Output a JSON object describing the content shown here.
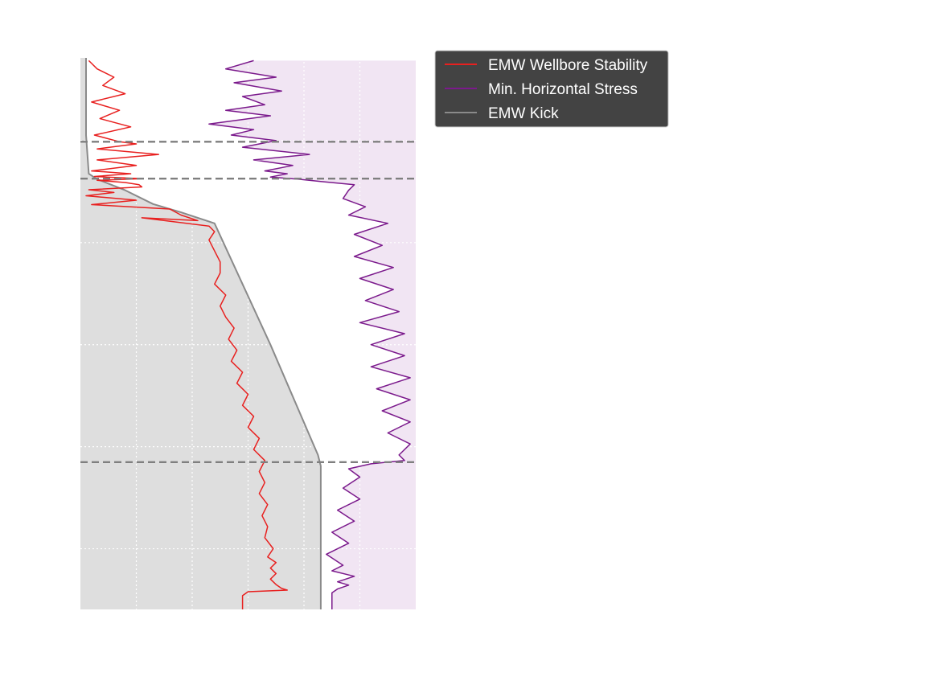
{
  "chart_data": {
    "type": "line",
    "title": "",
    "xlabel": "",
    "ylabel": "",
    "y_inverted": true,
    "xlim": [
      0,
      6
    ],
    "ylim": [
      0,
      100
    ],
    "grid": true,
    "legend": {
      "placement": "outside upper-right",
      "entries": [
        {
          "label": "EMW Wellbore Stability",
          "color": "#e8201f"
        },
        {
          "label": "Min. Horizontal Stress",
          "color": "#7b1a8c"
        },
        {
          "label": "EMW Kick",
          "color": "#8a8a8a"
        }
      ]
    },
    "colors": {
      "wellbore_stability": "#e8201f",
      "min_horizontal_stress": "#7b1a8c",
      "kick": "#8a8a8a",
      "kick_fill": "#dedede",
      "stress_fill": "#f1e5f3",
      "formation_top": "#7f7f7f",
      "grid": "#ffffff"
    },
    "formation_tops": [
      15.2,
      21.9,
      73.3
    ],
    "series": [
      {
        "name": "EMW Kick",
        "key": "kick",
        "x": [
          0.1,
          0.1,
          0.1,
          0.1,
          0.15,
          0.3,
          0.8,
          1.3,
          1.8,
          2.4,
          3.4,
          4.25,
          4.3,
          4.3,
          4.3
        ],
        "y": [
          0,
          5,
          10,
          14,
          21,
          22,
          24,
          26.5,
          28,
          30,
          52,
          72,
          74,
          90,
          100
        ]
      },
      {
        "name": "EMW Wellbore Stability",
        "key": "wellbore_stability",
        "x": [
          0.15,
          0.3,
          0.6,
          0.4,
          0.8,
          0.2,
          0.7,
          0.35,
          0.9,
          0.25,
          0.7,
          1.0,
          0.3,
          1.4,
          0.3,
          1.0,
          0.2,
          0.9,
          0.25,
          1.1,
          0.3,
          0.8,
          1.05,
          1.1,
          0.15,
          0.6,
          0.1,
          1.0,
          0.2,
          1.6,
          1.8,
          2.1,
          1.1,
          2.3,
          2.4,
          2.3,
          2.4,
          2.5,
          2.5,
          2.4,
          2.6,
          2.5,
          2.6,
          2.75,
          2.65,
          2.8,
          2.7,
          2.9,
          2.8,
          3.0,
          2.9,
          3.1,
          3.0,
          3.2,
          3.1,
          3.3,
          3.2,
          3.3,
          3.2,
          3.35,
          3.25,
          3.35,
          3.3,
          3.45,
          3.35,
          3.5,
          3.4,
          3.5,
          3.4,
          3.5,
          3.6,
          3.7,
          3.0,
          2.9,
          2.9
        ],
        "y": [
          0.5,
          2,
          3.5,
          5,
          6.5,
          8,
          9.5,
          11,
          12.5,
          14,
          15.2,
          15.6,
          16.5,
          17.5,
          18.5,
          19.5,
          20.5,
          21.0,
          21.5,
          21.9,
          22.2,
          22.6,
          23.0,
          23.4,
          23.9,
          24.4,
          25.0,
          25.8,
          26.6,
          27.4,
          28.5,
          29.5,
          29.0,
          30.5,
          31.5,
          33,
          35,
          37,
          39,
          41,
          43,
          45,
          47,
          49,
          51,
          53,
          55,
          57,
          59,
          61,
          63,
          65,
          67,
          69,
          71,
          73,
          75,
          77,
          79,
          81,
          83,
          85,
          87,
          89,
          90.5,
          91.5,
          92.5,
          93.5,
          94.5,
          95.5,
          96.2,
          96.5,
          96.8,
          97.5,
          100
        ]
      },
      {
        "name": "Min. Horizontal Stress",
        "key": "min_horizontal_stress",
        "x": [
          3.1,
          2.6,
          3.5,
          2.75,
          3.6,
          2.9,
          3.3,
          2.6,
          3.4,
          2.3,
          3.1,
          2.7,
          3.5,
          2.9,
          4.1,
          3.1,
          3.8,
          3.3,
          3.7,
          3.4,
          3.9,
          4.3,
          4.9,
          4.8,
          4.7,
          5.1,
          4.8,
          5.5,
          4.9,
          5.4,
          4.9,
          5.6,
          5.0,
          5.6,
          5.1,
          5.7,
          5.0,
          5.8,
          5.2,
          5.8,
          5.2,
          5.9,
          5.3,
          5.9,
          5.4,
          5.9,
          5.5,
          5.9,
          5.7,
          5.8,
          5.2,
          4.8,
          5.0,
          4.7,
          5.0,
          4.6,
          4.9,
          4.5,
          4.8,
          4.4,
          4.7,
          4.5,
          4.9,
          4.6,
          4.8,
          4.6,
          4.5,
          4.5
        ],
        "y": [
          0.5,
          2,
          3.5,
          4.5,
          6,
          7,
          8.5,
          9.5,
          10.5,
          12,
          13,
          14,
          15,
          16.2,
          17.5,
          18.5,
          19.5,
          20.5,
          21.0,
          21.6,
          22.0,
          22.4,
          23,
          24,
          25.5,
          27,
          28.5,
          30,
          32,
          34,
          36,
          38,
          40,
          42,
          44,
          46,
          48,
          50,
          52,
          54,
          56,
          58,
          60,
          62,
          64,
          66,
          68,
          70,
          72,
          73.0,
          73.6,
          74.5,
          76,
          78,
          80,
          82,
          84,
          86,
          88,
          90,
          92,
          93,
          94,
          95,
          95.6,
          96.3,
          97,
          100
        ]
      }
    ]
  }
}
